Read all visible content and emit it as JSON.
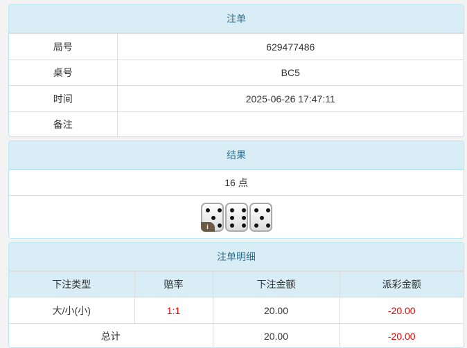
{
  "order": {
    "title": "注单",
    "rows": [
      {
        "label": "局号",
        "value": "629477486"
      },
      {
        "label": "桌号",
        "value": "BC5"
      },
      {
        "label": "时间",
        "value": "2025-06-26 17:47:11"
      },
      {
        "label": "备注",
        "value": ""
      }
    ]
  },
  "result": {
    "title": "结果",
    "points": "16 点",
    "dice": [
      5,
      6,
      5
    ],
    "info_badge": "i"
  },
  "detail": {
    "title": "注单明细",
    "headers": [
      "下注类型",
      "赔率",
      "下注金额",
      "派彩金额"
    ],
    "rows": [
      {
        "type": "大/小(小)",
        "odds": "1:1",
        "bet": "20.00",
        "payout": "-20.00"
      }
    ],
    "total": {
      "label": "总计",
      "bet": "20.00",
      "payout": "-20.00"
    }
  },
  "colors": {
    "header_bg": "#d9edf7",
    "header_text": "#31708f",
    "negative": "#e00000"
  }
}
